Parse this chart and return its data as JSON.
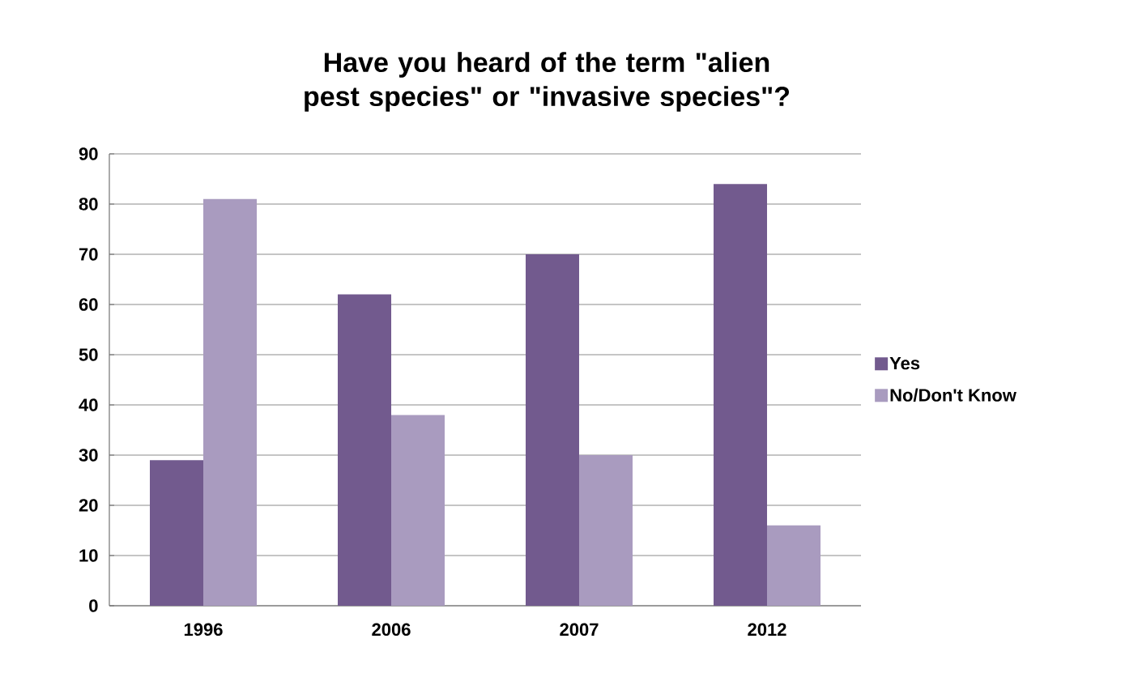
{
  "chart_data": {
    "type": "bar",
    "title": "Have you heard of the term \"alien pest species\" or \"invasive species\"?",
    "categories": [
      "1996",
      "2006",
      "2007",
      "2012"
    ],
    "series": [
      {
        "name": "Yes",
        "color": "#725a8e",
        "values": [
          29,
          62,
          70,
          84
        ]
      },
      {
        "name": "No/Don't Know",
        "color": "#a99bbf",
        "values": [
          81,
          38,
          30,
          16
        ]
      }
    ],
    "ylim": [
      0,
      90
    ],
    "yticks": [
      0,
      10,
      20,
      30,
      40,
      50,
      60,
      70,
      80,
      90
    ],
    "grid": "y",
    "legend": "right"
  }
}
